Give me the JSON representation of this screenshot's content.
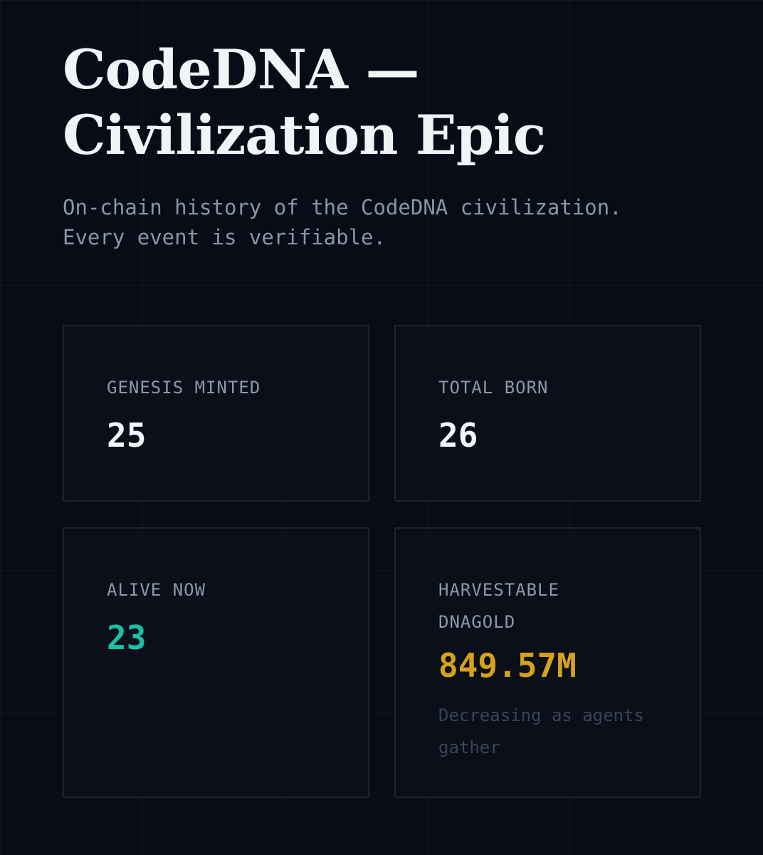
{
  "header": {
    "title_line1": "CodeDNA —",
    "title_line2": "Civilization Epic",
    "subtitle_line1": "On-chain history of the CodeDNA civilization.",
    "subtitle_line2": "Every event is verifiable."
  },
  "stats": {
    "genesis": {
      "label": "GENESIS MINTED",
      "value": "25"
    },
    "born": {
      "label": "TOTAL BORN",
      "value": "26"
    },
    "alive": {
      "label": "ALIVE NOW",
      "value": "23"
    },
    "harvestable": {
      "label_line1": "HARVESTABLE",
      "label_line2": "DNAGOLD",
      "value": "849.57M",
      "note_line1": "Decreasing as agents",
      "note_line2": "gather"
    }
  },
  "colors": {
    "background": "#070c16",
    "accent_teal": "#19c2a6",
    "accent_gold": "#d6a11e"
  }
}
